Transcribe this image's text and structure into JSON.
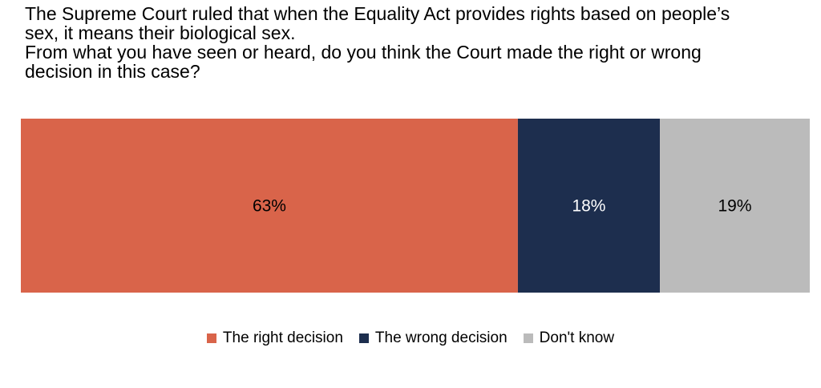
{
  "title_lines": [
    "The Supreme Court ruled that when the Equality Act provides rights based on people’s",
    "sex, it means their biological sex.",
    "From what you have seen or heard, do you think the Court made the right or wrong",
    "decision in this case?"
  ],
  "colors": {
    "right": "#d9644a",
    "wrong": "#1d2e4e",
    "dont_know": "#bbbbbb"
  },
  "chart_data": {
    "type": "bar",
    "orientation": "horizontal-stacked",
    "categories": [
      ""
    ],
    "series": [
      {
        "name": "The right decision",
        "values": [
          63
        ],
        "label": "63%"
      },
      {
        "name": "The wrong decision",
        "values": [
          18
        ],
        "label": "18%"
      },
      {
        "name": "Don't know",
        "values": [
          19
        ],
        "label": "19%"
      }
    ],
    "xlim": [
      0,
      100
    ],
    "grid": false,
    "legend_position": "bottom-center"
  }
}
